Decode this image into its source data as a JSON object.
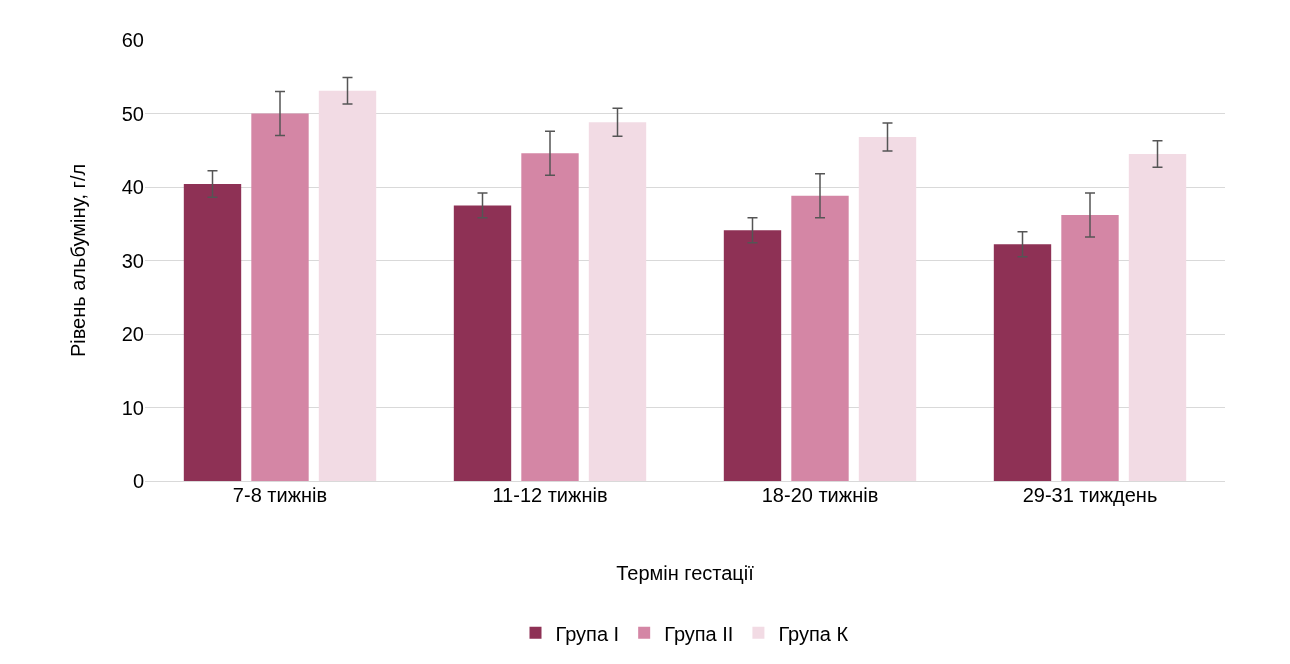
{
  "chart_data": {
    "type": "bar",
    "xlabel": "Термін гестації",
    "ylabel": "Рівень альбуміну, г/л",
    "categories": [
      "7-8 тижнів",
      "11-12 тижнів",
      "18-20 тижнів",
      "29-31 тиждень"
    ],
    "series": [
      {
        "name": "Група I",
        "color": "#8e3155",
        "values": [
          40.4,
          37.5,
          34.1,
          32.2
        ],
        "errors": [
          1.8,
          1.7,
          1.7,
          1.7
        ]
      },
      {
        "name": "Група II",
        "color": "#d486a5",
        "values": [
          50,
          44.6,
          38.8,
          36.2
        ],
        "errors": [
          3,
          3,
          3,
          3
        ]
      },
      {
        "name": "Група К",
        "color": "#f2dbe4",
        "values": [
          53.1,
          48.8,
          46.8,
          44.5
        ],
        "errors": [
          1.8,
          1.9,
          1.9,
          1.8
        ]
      }
    ],
    "ylim": [
      0,
      60
    ],
    "yticks": [
      0,
      10,
      20,
      30,
      40,
      50,
      60
    ],
    "grid": "y",
    "legend": "bottom"
  }
}
